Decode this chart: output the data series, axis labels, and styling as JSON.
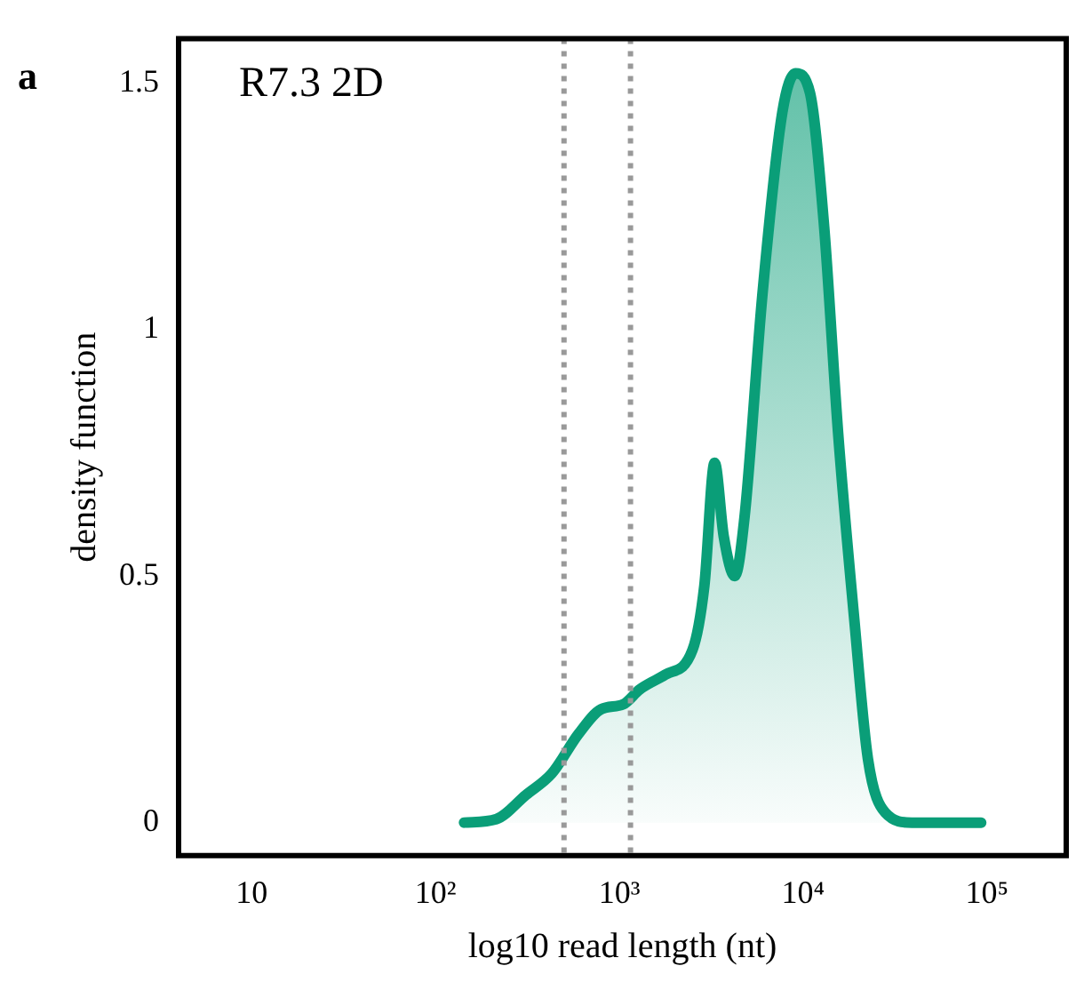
{
  "chart_data": {
    "type": "area",
    "xlabel": "log10 read length (nt)",
    "ylabel": "density function",
    "annotations": [
      "a",
      "R7.3 2D"
    ],
    "x": [
      143,
      214,
      310,
      430,
      600,
      795,
      1050,
      1290,
      1780,
      2500,
      2900,
      3300,
      3700,
      4250,
      4800,
      6000,
      7700,
      9100,
      10900,
      13000,
      15500,
      19000,
      22500,
      28000,
      39000,
      93000
    ],
    "series": [
      {
        "color": "#0a9e78",
        "values": [
          0,
          0.007,
          0.056,
          0.1,
          0.18,
          0.23,
          0.24,
          0.27,
          0.3,
          0.35,
          0.48,
          0.73,
          0.58,
          0.5,
          0.62,
          1.07,
          1.44,
          1.52,
          1.48,
          1.21,
          0.79,
          0.41,
          0.13,
          0.02,
          0,
          0
        ]
      }
    ],
    "log": "x",
    "xlim": [
      4,
      270000
    ],
    "ylim": [
      -0.067,
      1.59
    ],
    "xticks": [
      {
        "value": 10,
        "label": "10"
      },
      {
        "value": 100,
        "label": "10²"
      },
      {
        "value": 1000,
        "label": "10³"
      },
      {
        "value": 10000,
        "label": "10⁴"
      },
      {
        "value": 100000,
        "label": "10⁵"
      }
    ],
    "yticks": [
      0,
      0.5,
      1,
      1.5
    ],
    "ref_lines": [
      {
        "axis": "x",
        "value": 500,
        "color": "#999999",
        "line_style": "dotted"
      },
      {
        "axis": "x",
        "value": 1150,
        "color": "#999999",
        "line_style": "dotted"
      }
    ],
    "grid": false,
    "legend": false,
    "marker": "none",
    "line_style": "solid"
  }
}
